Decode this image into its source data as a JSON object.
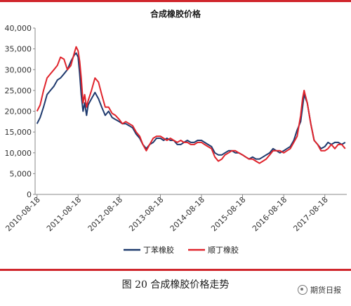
{
  "caption": "图 20 合成橡胶价格走势",
  "watermark": "期货日报",
  "colors": {
    "frame": "#d0262c",
    "sbr": "#1f3a6e",
    "br": "#e0242c",
    "grid": "#d9d9d9",
    "axis": "#888888"
  },
  "chart_data": {
    "type": "line",
    "title": "合成橡胶价格",
    "xlabel": "",
    "ylabel": "",
    "ylim": [
      0,
      40000
    ],
    "yticks": [
      0,
      5000,
      10000,
      15000,
      20000,
      25000,
      30000,
      35000,
      40000
    ],
    "ytick_labels": [
      "0",
      "5,000",
      "10,000",
      "15,000",
      "20,000",
      "25,000",
      "30,000",
      "35,000",
      "40,000"
    ],
    "xlim": [
      "2010-08-01",
      "2018-03-01"
    ],
    "xticks": [
      "2010-08-18",
      "2011-08-18",
      "2012-08-18",
      "2013-08-18",
      "2014-08-18",
      "2015-08-18",
      "2016-08-18",
      "2017-08-18"
    ],
    "grid": false,
    "legend_position": "bottom",
    "series": [
      {
        "name": "丁苯橡胶",
        "color": "#1f3a6e",
        "x": [
          "2010-08-18",
          "2010-09-15",
          "2010-10-15",
          "2010-11-15",
          "2010-12-15",
          "2011-01-15",
          "2011-02-15",
          "2011-03-15",
          "2011-04-15",
          "2011-05-15",
          "2011-06-15",
          "2011-07-15",
          "2011-08-01",
          "2011-08-18",
          "2011-09-01",
          "2011-09-15",
          "2011-10-01",
          "2011-10-15",
          "2011-11-01",
          "2011-11-15",
          "2011-12-15",
          "2012-01-15",
          "2012-02-15",
          "2012-03-15",
          "2012-04-15",
          "2012-05-15",
          "2012-06-15",
          "2012-07-15",
          "2012-08-18",
          "2012-09-15",
          "2012-10-15",
          "2012-11-15",
          "2012-12-15",
          "2013-01-15",
          "2013-02-15",
          "2013-03-15",
          "2013-04-15",
          "2013-05-15",
          "2013-06-15",
          "2013-07-15",
          "2013-08-18",
          "2013-09-15",
          "2013-10-15",
          "2013-11-15",
          "2013-12-15",
          "2014-01-15",
          "2014-02-15",
          "2014-03-15",
          "2014-04-15",
          "2014-05-15",
          "2014-06-15",
          "2014-07-15",
          "2014-08-18",
          "2014-09-15",
          "2014-10-15",
          "2014-11-15",
          "2014-12-15",
          "2015-01-15",
          "2015-02-15",
          "2015-03-15",
          "2015-04-15",
          "2015-05-15",
          "2015-06-15",
          "2015-07-15",
          "2015-08-18",
          "2015-09-15",
          "2015-10-15",
          "2015-11-15",
          "2015-12-15",
          "2016-01-15",
          "2016-02-15",
          "2016-03-15",
          "2016-04-15",
          "2016-05-15",
          "2016-06-15",
          "2016-07-15",
          "2016-08-18",
          "2016-09-15",
          "2016-10-15",
          "2016-11-15",
          "2016-12-15",
          "2017-01-15",
          "2017-02-01",
          "2017-02-15",
          "2017-03-15",
          "2017-04-15",
          "2017-05-15",
          "2017-06-15",
          "2017-07-15",
          "2017-08-18",
          "2017-09-15",
          "2017-10-15",
          "2017-11-15",
          "2017-12-15",
          "2018-01-15",
          "2018-02-15"
        ],
        "values": [
          17000,
          18500,
          21000,
          24000,
          25000,
          26000,
          27500,
          28000,
          29000,
          30000,
          32000,
          33500,
          34000,
          33000,
          29000,
          24000,
          20000,
          22000,
          19000,
          21500,
          23000,
          24500,
          23000,
          21000,
          19000,
          20000,
          18500,
          18000,
          17500,
          17000,
          17000,
          16500,
          16000,
          14500,
          13500,
          12000,
          11000,
          12000,
          12500,
          13500,
          13500,
          13000,
          13500,
          13000,
          13000,
          12000,
          12000,
          12500,
          13000,
          12500,
          12500,
          13000,
          13000,
          12500,
          12000,
          11500,
          10000,
          9500,
          9500,
          10000,
          10500,
          10500,
          10000,
          10000,
          9500,
          9000,
          8500,
          9000,
          8500,
          8500,
          9000,
          9500,
          10000,
          11000,
          10500,
          10000,
          10500,
          11000,
          11500,
          13000,
          15500,
          17500,
          21000,
          24000,
          22000,
          17000,
          13000,
          12000,
          11000,
          11500,
          12500,
          12000,
          12500,
          12500,
          12000,
          12500
        ]
      },
      {
        "name": "顺丁橡胶",
        "color": "#e0242c",
        "x": [
          "2010-08-18",
          "2010-09-15",
          "2010-10-15",
          "2010-11-15",
          "2010-12-15",
          "2011-01-15",
          "2011-02-15",
          "2011-03-15",
          "2011-04-15",
          "2011-05-15",
          "2011-06-15",
          "2011-07-15",
          "2011-08-01",
          "2011-08-18",
          "2011-09-01",
          "2011-09-15",
          "2011-10-01",
          "2011-10-15",
          "2011-11-01",
          "2011-11-15",
          "2011-12-15",
          "2012-01-15",
          "2012-02-15",
          "2012-03-15",
          "2012-04-15",
          "2012-05-15",
          "2012-06-15",
          "2012-07-15",
          "2012-08-18",
          "2012-09-15",
          "2012-10-15",
          "2012-11-15",
          "2012-12-15",
          "2013-01-15",
          "2013-02-15",
          "2013-03-15",
          "2013-04-15",
          "2013-05-15",
          "2013-06-15",
          "2013-07-15",
          "2013-08-18",
          "2013-09-15",
          "2013-10-15",
          "2013-11-15",
          "2013-12-15",
          "2014-01-15",
          "2014-02-15",
          "2014-03-15",
          "2014-04-15",
          "2014-05-15",
          "2014-06-15",
          "2014-07-15",
          "2014-08-18",
          "2014-09-15",
          "2014-10-15",
          "2014-11-15",
          "2014-12-15",
          "2015-01-15",
          "2015-02-15",
          "2015-03-15",
          "2015-04-15",
          "2015-05-15",
          "2015-06-15",
          "2015-07-15",
          "2015-08-18",
          "2015-09-15",
          "2015-10-15",
          "2015-11-15",
          "2015-12-15",
          "2016-01-15",
          "2016-02-15",
          "2016-03-15",
          "2016-04-15",
          "2016-05-15",
          "2016-06-15",
          "2016-07-15",
          "2016-08-18",
          "2016-09-15",
          "2016-10-15",
          "2016-11-15",
          "2016-12-15",
          "2017-01-15",
          "2017-02-01",
          "2017-02-15",
          "2017-03-15",
          "2017-04-15",
          "2017-05-15",
          "2017-06-15",
          "2017-07-15",
          "2017-08-18",
          "2017-09-15",
          "2017-10-15",
          "2017-11-15",
          "2017-12-15",
          "2018-01-15",
          "2018-02-15"
        ],
        "values": [
          20000,
          21500,
          25000,
          28000,
          29000,
          30000,
          31000,
          33000,
          32500,
          30000,
          31000,
          34000,
          35500,
          34500,
          32000,
          28000,
          22000,
          24000,
          21000,
          22500,
          25000,
          28000,
          27000,
          24000,
          21000,
          21000,
          19500,
          19000,
          18000,
          17000,
          17500,
          17000,
          16500,
          15000,
          14000,
          12000,
          10500,
          12000,
          13500,
          14000,
          14000,
          13500,
          13000,
          13500,
          13000,
          12500,
          13000,
          12500,
          12500,
          12000,
          12000,
          12500,
          12500,
          12000,
          11500,
          11000,
          9000,
          8000,
          8500,
          9500,
          10000,
          10500,
          10500,
          10000,
          9500,
          9000,
          8500,
          8500,
          8000,
          7500,
          8000,
          8500,
          9500,
          10500,
          10500,
          10500,
          10000,
          10500,
          11000,
          12500,
          14000,
          19000,
          23000,
          25000,
          22000,
          17000,
          13000,
          12000,
          10500,
          10500,
          11000,
          12000,
          11000,
          12000,
          12000,
          11000
        ]
      }
    ]
  }
}
